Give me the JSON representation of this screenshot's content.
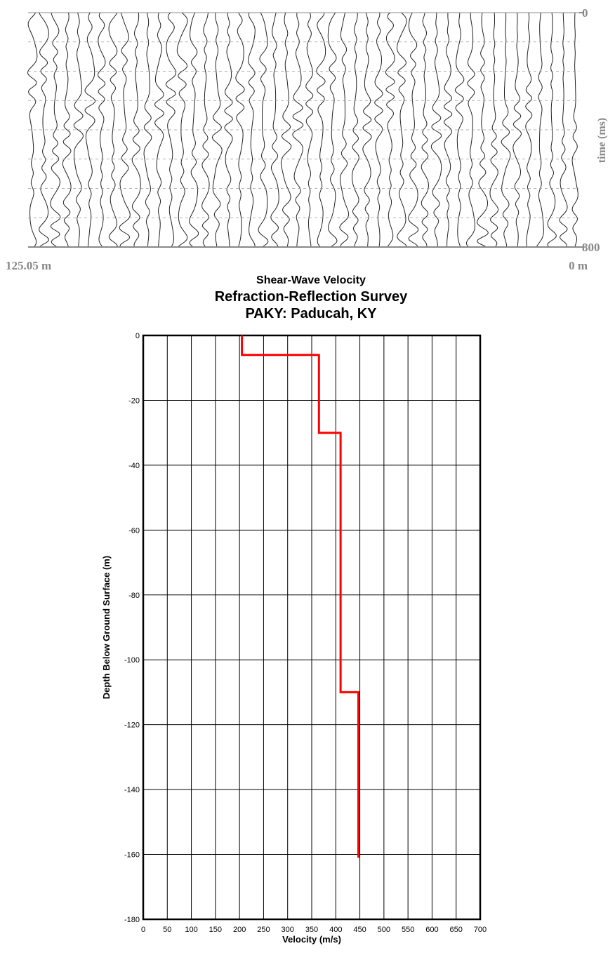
{
  "chart_data": [
    {
      "type": "seismic",
      "ylabel": "time (ms)",
      "ylim": [
        0,
        800
      ],
      "yticks": [
        0,
        800
      ],
      "xlim": [
        125.05,
        0
      ],
      "xticks": [
        {
          "value": 125.05,
          "label": "125.05 m"
        },
        {
          "value": 0,
          "label": "0 m"
        }
      ]
    },
    {
      "type": "line",
      "title": [
        "Shear-Wave Velocity",
        "Refraction-Reflection Survey",
        "PAKY: Paducah, KY"
      ],
      "xlabel": "Velocity (m/s)",
      "ylabel": "Depth Below Ground Surface (m)",
      "x": [
        205,
        205,
        365,
        365,
        410,
        410,
        447,
        447
      ],
      "series": [
        {
          "color": "#ff0000",
          "values": [
            0,
            -6,
            -6,
            -30,
            -30,
            -110,
            -110,
            -161
          ]
        }
      ],
      "xlim": [
        0,
        700
      ],
      "xticks": [
        0,
        50,
        100,
        150,
        200,
        250,
        300,
        350,
        400,
        450,
        500,
        550,
        600,
        650,
        700
      ],
      "ylim": [
        -180,
        0
      ],
      "yticks": [
        0,
        -20,
        -40,
        -60,
        -80,
        -100,
        -120,
        -140,
        -160,
        -180
      ],
      "grid": true
    }
  ]
}
